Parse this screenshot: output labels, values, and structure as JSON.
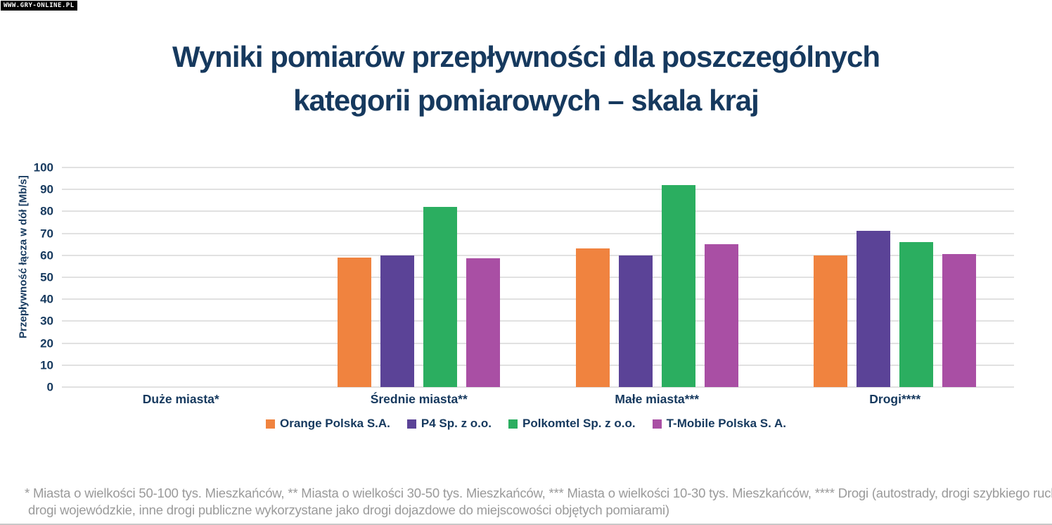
{
  "watermark": "WWW.GRY-ONLINE.PL",
  "title_line1": "Wyniki pomiarów przepływności dla poszczególnych",
  "title_line2": "kategorii pomiarowych – skala kraj",
  "chart_data": {
    "type": "bar",
    "title": "Wyniki pomiarów przepływności dla poszczególnych kategorii pomiarowych – skala kraj",
    "xlabel": "",
    "ylabel": "Przepływność łącza w dół [Mb/s]",
    "ylim": [
      0,
      100
    ],
    "ytick_step": 10,
    "yticks": [
      0,
      10,
      20,
      30,
      40,
      50,
      60,
      70,
      80,
      90,
      100
    ],
    "grid": true,
    "legend_position": "bottom",
    "categories": [
      "Duże miasta*",
      "Średnie miasta**",
      "Małe miasta***",
      "Drogi****"
    ],
    "series": [
      {
        "name": "Orange Polska S.A.",
        "color": "#f0833f",
        "values": [
          null,
          59,
          63,
          60
        ]
      },
      {
        "name": "P4 Sp. z o.o.",
        "color": "#5b4397",
        "values": [
          null,
          60,
          60,
          71
        ]
      },
      {
        "name": "Polkomtel Sp. z o.o.",
        "color": "#2bae60",
        "values": [
          null,
          82,
          92,
          66
        ]
      },
      {
        "name": "T-Mobile Polska S. A.",
        "color": "#a94fa4",
        "values": [
          null,
          58.5,
          65,
          60.5
        ]
      }
    ]
  },
  "footnote_line1": "* Miasta o wielkości 50-100 tys. Mieszkańców, ** Miasta o wielkości 30-50 tys. Mieszkańców, *** Miasta o wielkości 10-30 tys. Mieszkańców, **** Drogi (autostrady, drogi szybkiego ruchu, drogi krajowe,",
  "footnote_line2": "drogi wojewódzkie, inne drogi publiczne wykorzystane jako drogi dojazdowe do miejscowości objętych pomiarami)"
}
